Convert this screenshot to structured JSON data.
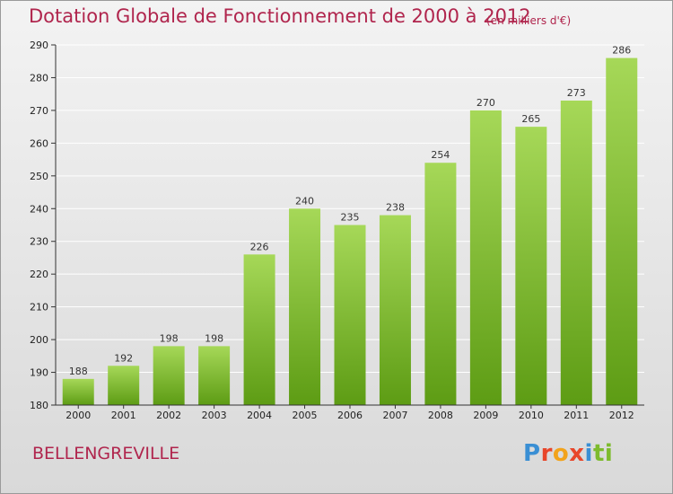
{
  "title": "Dotation Globale de Fonctionnement de 2000 à 2012",
  "subtitle": "(en milliers d'€)",
  "commune": "BELLENGREVILLE",
  "logo": {
    "text": "Proxiti",
    "letter_colors": [
      "#3a8fd4",
      "#e8462a",
      "#f2a31b",
      "#e8462a",
      "#3a8fd4",
      "#7dbb2d",
      "#7dbb2d"
    ]
  },
  "colors": {
    "title": "#b0254d",
    "bar_light": "#a6d858",
    "bar_dark": "#5d9c14",
    "grid": "#ffffff",
    "axis": "#333333"
  },
  "chart_data": {
    "type": "bar",
    "title": "Dotation Globale de Fonctionnement de 2000 à 2012",
    "subtitle": "(en milliers d'€)",
    "categories": [
      "2000",
      "2001",
      "2002",
      "2003",
      "2004",
      "2005",
      "2006",
      "2007",
      "2008",
      "2009",
      "2010",
      "2011",
      "2012"
    ],
    "values": [
      188,
      192,
      198,
      198,
      226,
      240,
      235,
      238,
      254,
      270,
      265,
      273,
      286
    ],
    "ylim": [
      180,
      290
    ],
    "yticks": [
      180,
      190,
      200,
      210,
      220,
      230,
      240,
      250,
      260,
      270,
      280,
      290
    ],
    "grid": true,
    "data_labels": true
  }
}
